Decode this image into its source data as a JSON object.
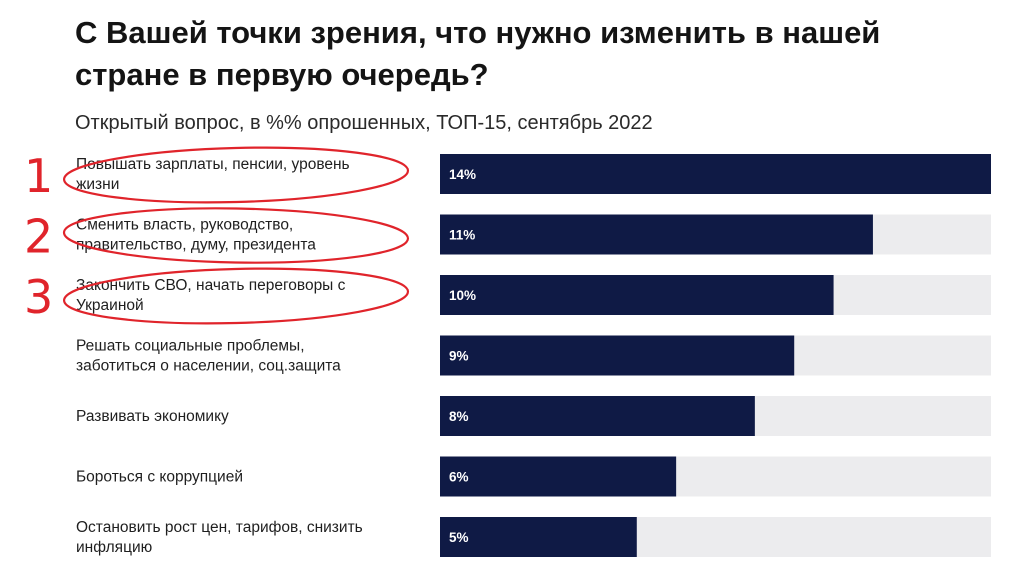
{
  "chart_data": {
    "type": "bar",
    "orientation": "horizontal",
    "title": "С Вашей точки зрения, что нужно изменить в нашей стране в первую очередь?",
    "subtitle": "Открытый вопрос, в %% опрошенных, ТОП-15, сентябрь 2022",
    "categories": [
      [
        "Повышать зарплаты, пенсии, уровень",
        "жизни"
      ],
      [
        "Сменить власть, руководство,",
        "правительство, думу, президента"
      ],
      [
        "Закончить СВО, начать переговоры с",
        "Украиной"
      ],
      [
        "Решать социальные проблемы,",
        "заботиться о населении, соц.защита"
      ],
      [
        "Развивать экономику"
      ],
      [
        "Бороться с коррупцией"
      ],
      [
        "Остановить рост цен, тарифов, снизить",
        "инфляцию"
      ]
    ],
    "values": [
      14,
      11,
      10,
      9,
      8,
      6,
      5
    ],
    "value_labels": [
      "14%",
      "11%",
      "10%",
      "9%",
      "8%",
      "6%",
      "5%"
    ],
    "xlim": [
      0,
      14
    ],
    "bar_color": "#0f1a45",
    "track_color": "#ececee",
    "annotations": {
      "numbers": [
        "1",
        "2",
        "3"
      ],
      "circled_rows": [
        0,
        1,
        2
      ],
      "color": "#e0242b"
    }
  }
}
